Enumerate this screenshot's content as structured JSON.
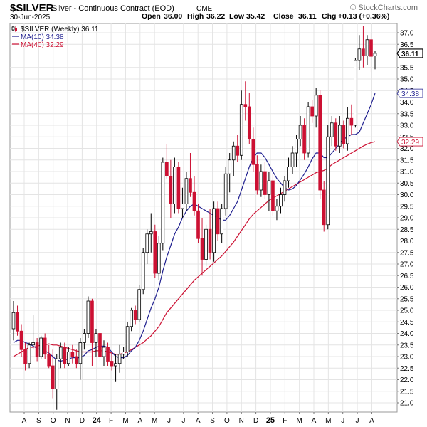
{
  "header": {
    "symbol": "$SILVER",
    "description": "Silver - Continuous Contract (EOD)",
    "exchange": "CME",
    "source_logo": "© StockCharts.com",
    "date": "30-Jun-2025",
    "open_label": "Open",
    "open_value": "36.00",
    "high_label": "High",
    "high_value": "36.22",
    "low_label": "Low",
    "low_value": "35.42",
    "close_label": "Close",
    "close_value": "36.11",
    "chg_label": "Chg",
    "chg_value": "+0.13 (+0.36%)"
  },
  "chart_data": {
    "type": "candlestick",
    "title": "$SILVER Silver - Continuous Contract (EOD) CME",
    "frequency": "Weekly",
    "ylim": [
      20.6,
      37.4
    ],
    "y_ticks": [
      21.0,
      21.5,
      22.0,
      22.5,
      23.0,
      23.5,
      24.0,
      24.5,
      25.0,
      25.5,
      26.0,
      26.5,
      27.0,
      27.5,
      28.0,
      28.5,
      29.0,
      29.5,
      30.0,
      30.5,
      31.0,
      31.5,
      32.0,
      32.5,
      33.0,
      33.5,
      34.0,
      34.5,
      35.0,
      35.5,
      36.0,
      36.5,
      37.0
    ],
    "x_ticks": [
      "A",
      "S",
      "O",
      "N",
      "D",
      "24",
      "F",
      "M",
      "A",
      "M",
      "J",
      "J",
      "A",
      "S",
      "O",
      "N",
      "D",
      "25",
      "F",
      "M",
      "A",
      "M",
      "J",
      "J",
      "A"
    ],
    "grid": true,
    "legend_position": "top-left",
    "legend": [
      {
        "label": "$SILVER (Weekly) 36.11",
        "color": "#000000"
      },
      {
        "label": "MA(10) 34.38",
        "color": "#1f1f8f"
      },
      {
        "label": "MA(40) 32.29",
        "color": "#cc1133"
      }
    ],
    "price_labels": [
      {
        "text": "36.11",
        "value": 36.11,
        "style": "last"
      },
      {
        "text": "34.38",
        "value": 34.38,
        "style": "ma10"
      },
      {
        "text": "32.29",
        "value": 32.29,
        "style": "ma40"
      }
    ],
    "colors": {
      "up": "#ffffff",
      "down": "#cc1133",
      "outline": "#000000",
      "ma10": "#1f1f8f",
      "ma40": "#cc1133"
    },
    "candles": [
      {
        "o": 24.2,
        "h": 25.4,
        "l": 23.7,
        "c": 24.9
      },
      {
        "o": 24.9,
        "h": 25.2,
        "l": 23.9,
        "c": 24.1
      },
      {
        "o": 24.1,
        "h": 24.4,
        "l": 23.0,
        "c": 23.3
      },
      {
        "o": 23.3,
        "h": 23.6,
        "l": 22.4,
        "c": 22.7
      },
      {
        "o": 22.7,
        "h": 23.6,
        "l": 22.5,
        "c": 23.5
      },
      {
        "o": 23.5,
        "h": 24.8,
        "l": 23.3,
        "c": 23.6
      },
      {
        "o": 23.6,
        "h": 23.8,
        "l": 22.8,
        "c": 23.0
      },
      {
        "o": 23.0,
        "h": 23.9,
        "l": 22.9,
        "c": 23.8
      },
      {
        "o": 23.8,
        "h": 24.0,
        "l": 22.9,
        "c": 23.1
      },
      {
        "o": 23.1,
        "h": 23.5,
        "l": 22.5,
        "c": 22.6
      },
      {
        "o": 22.6,
        "h": 23.3,
        "l": 21.2,
        "c": 21.6
      },
      {
        "o": 21.6,
        "h": 23.1,
        "l": 20.7,
        "c": 22.9
      },
      {
        "o": 22.9,
        "h": 23.6,
        "l": 22.5,
        "c": 23.4
      },
      {
        "o": 23.4,
        "h": 23.6,
        "l": 22.5,
        "c": 22.7
      },
      {
        "o": 22.7,
        "h": 23.4,
        "l": 22.6,
        "c": 23.2
      },
      {
        "o": 23.2,
        "h": 23.5,
        "l": 22.7,
        "c": 23.0
      },
      {
        "o": 23.0,
        "h": 23.3,
        "l": 22.5,
        "c": 22.7
      },
      {
        "o": 22.7,
        "h": 23.8,
        "l": 22.0,
        "c": 23.6
      },
      {
        "o": 23.6,
        "h": 24.2,
        "l": 23.3,
        "c": 24.0
      },
      {
        "o": 24.0,
        "h": 25.6,
        "l": 23.8,
        "c": 25.4
      },
      {
        "o": 25.4,
        "h": 25.5,
        "l": 22.6,
        "c": 23.6
      },
      {
        "o": 23.6,
        "h": 24.2,
        "l": 23.0,
        "c": 24.0
      },
      {
        "o": 24.0,
        "h": 24.1,
        "l": 22.8,
        "c": 23.0
      },
      {
        "o": 23.0,
        "h": 23.7,
        "l": 22.6,
        "c": 23.4
      },
      {
        "o": 23.4,
        "h": 23.6,
        "l": 22.6,
        "c": 22.8
      },
      {
        "o": 22.8,
        "h": 23.2,
        "l": 22.4,
        "c": 22.6
      },
      {
        "o": 22.6,
        "h": 23.1,
        "l": 21.9,
        "c": 22.7
      },
      {
        "o": 22.7,
        "h": 23.5,
        "l": 22.3,
        "c": 23.1
      },
      {
        "o": 23.1,
        "h": 23.4,
        "l": 22.9,
        "c": 23.2
      },
      {
        "o": 23.2,
        "h": 24.5,
        "l": 23.0,
        "c": 24.3
      },
      {
        "o": 24.3,
        "h": 25.1,
        "l": 24.1,
        "c": 25.0
      },
      {
        "o": 25.0,
        "h": 25.2,
        "l": 24.4,
        "c": 24.6
      },
      {
        "o": 24.6,
        "h": 26.1,
        "l": 24.5,
        "c": 25.9
      },
      {
        "o": 25.9,
        "h": 27.7,
        "l": 25.7,
        "c": 27.5
      },
      {
        "o": 27.5,
        "h": 28.5,
        "l": 27.0,
        "c": 28.3
      },
      {
        "o": 28.3,
        "h": 29.2,
        "l": 27.5,
        "c": 28.4
      },
      {
        "o": 28.4,
        "h": 28.7,
        "l": 26.4,
        "c": 26.6
      },
      {
        "o": 26.6,
        "h": 28.2,
        "l": 26.3,
        "c": 27.9
      },
      {
        "o": 27.9,
        "h": 31.6,
        "l": 27.6,
        "c": 31.4
      },
      {
        "o": 31.4,
        "h": 32.2,
        "l": 30.7,
        "c": 30.8
      },
      {
        "o": 30.8,
        "h": 31.5,
        "l": 29.0,
        "c": 29.6
      },
      {
        "o": 29.6,
        "h": 31.6,
        "l": 29.2,
        "c": 31.2
      },
      {
        "o": 31.2,
        "h": 31.4,
        "l": 29.2,
        "c": 29.4
      },
      {
        "o": 29.4,
        "h": 30.3,
        "l": 29.0,
        "c": 29.6
      },
      {
        "o": 29.6,
        "h": 31.0,
        "l": 29.3,
        "c": 30.7
      },
      {
        "o": 30.7,
        "h": 31.8,
        "l": 29.9,
        "c": 30.1
      },
      {
        "o": 30.1,
        "h": 30.8,
        "l": 29.1,
        "c": 29.3
      },
      {
        "o": 29.3,
        "h": 29.6,
        "l": 27.9,
        "c": 28.1
      },
      {
        "o": 28.1,
        "h": 29.0,
        "l": 26.5,
        "c": 27.2
      },
      {
        "o": 27.2,
        "h": 28.7,
        "l": 26.9,
        "c": 28.5
      },
      {
        "o": 28.5,
        "h": 29.4,
        "l": 27.2,
        "c": 27.5
      },
      {
        "o": 27.5,
        "h": 29.7,
        "l": 27.1,
        "c": 29.4
      },
      {
        "o": 29.4,
        "h": 29.7,
        "l": 28.0,
        "c": 28.3
      },
      {
        "o": 28.3,
        "h": 29.6,
        "l": 27.9,
        "c": 29.4
      },
      {
        "o": 29.4,
        "h": 31.2,
        "l": 29.1,
        "c": 30.9
      },
      {
        "o": 30.9,
        "h": 31.8,
        "l": 30.1,
        "c": 31.5
      },
      {
        "o": 31.5,
        "h": 32.3,
        "l": 30.8,
        "c": 32.1
      },
      {
        "o": 32.1,
        "h": 32.6,
        "l": 31.4,
        "c": 31.7
      },
      {
        "o": 31.7,
        "h": 34.5,
        "l": 31.5,
        "c": 33.9
      },
      {
        "o": 33.9,
        "h": 34.9,
        "l": 33.2,
        "c": 33.8
      },
      {
        "o": 33.8,
        "h": 34.4,
        "l": 32.2,
        "c": 32.4
      },
      {
        "o": 32.4,
        "h": 32.9,
        "l": 31.0,
        "c": 31.3
      },
      {
        "o": 31.3,
        "h": 31.7,
        "l": 30.0,
        "c": 30.2
      },
      {
        "o": 30.2,
        "h": 31.3,
        "l": 29.9,
        "c": 31.0
      },
      {
        "o": 31.0,
        "h": 31.4,
        "l": 29.8,
        "c": 30.0
      },
      {
        "o": 30.0,
        "h": 31.0,
        "l": 29.3,
        "c": 30.6
      },
      {
        "o": 30.6,
        "h": 30.9,
        "l": 29.1,
        "c": 29.3
      },
      {
        "o": 29.3,
        "h": 29.8,
        "l": 28.9,
        "c": 29.5
      },
      {
        "o": 29.5,
        "h": 30.3,
        "l": 29.2,
        "c": 30.0
      },
      {
        "o": 30.0,
        "h": 30.8,
        "l": 29.7,
        "c": 30.6
      },
      {
        "o": 30.6,
        "h": 31.6,
        "l": 30.3,
        "c": 31.2
      },
      {
        "o": 31.2,
        "h": 32.1,
        "l": 30.9,
        "c": 31.8
      },
      {
        "o": 31.8,
        "h": 32.6,
        "l": 31.2,
        "c": 32.4
      },
      {
        "o": 32.4,
        "h": 33.4,
        "l": 32.1,
        "c": 33.0
      },
      {
        "o": 33.0,
        "h": 33.3,
        "l": 31.5,
        "c": 31.8
      },
      {
        "o": 31.8,
        "h": 34.0,
        "l": 31.6,
        "c": 33.8
      },
      {
        "o": 33.8,
        "h": 34.1,
        "l": 33.1,
        "c": 33.4
      },
      {
        "o": 33.4,
        "h": 34.6,
        "l": 32.9,
        "c": 34.3
      },
      {
        "o": 34.3,
        "h": 34.5,
        "l": 29.8,
        "c": 30.2
      },
      {
        "o": 30.2,
        "h": 30.6,
        "l": 28.4,
        "c": 28.7
      },
      {
        "o": 28.7,
        "h": 33.0,
        "l": 28.5,
        "c": 32.5
      },
      {
        "o": 32.5,
        "h": 33.4,
        "l": 32.1,
        "c": 33.1
      },
      {
        "o": 33.1,
        "h": 33.3,
        "l": 31.9,
        "c": 32.1
      },
      {
        "o": 32.1,
        "h": 33.4,
        "l": 31.8,
        "c": 33.0
      },
      {
        "o": 33.0,
        "h": 33.2,
        "l": 32.0,
        "c": 32.2
      },
      {
        "o": 32.2,
        "h": 33.8,
        "l": 31.9,
        "c": 33.3
      },
      {
        "o": 33.3,
        "h": 33.9,
        "l": 32.6,
        "c": 33.0
      },
      {
        "o": 33.0,
        "h": 35.9,
        "l": 32.9,
        "c": 35.8
      },
      {
        "o": 35.8,
        "h": 36.9,
        "l": 35.4,
        "c": 36.3
      },
      {
        "o": 36.3,
        "h": 37.3,
        "l": 35.5,
        "c": 36.0
      },
      {
        "o": 36.0,
        "h": 36.9,
        "l": 35.6,
        "c": 36.7
      },
      {
        "o": 36.7,
        "h": 37.0,
        "l": 35.3,
        "c": 35.98
      },
      {
        "o": 36.0,
        "h": 36.22,
        "l": 35.42,
        "c": 36.11
      }
    ],
    "ma10": [
      23.6,
      23.7,
      23.7,
      23.6,
      23.55,
      23.45,
      23.35,
      23.3,
      23.25,
      23.15,
      23.0,
      22.85,
      22.8,
      22.85,
      22.9,
      22.95,
      22.95,
      22.95,
      23.05,
      23.25,
      23.3,
      23.4,
      23.45,
      23.45,
      23.4,
      23.2,
      23.0,
      22.95,
      22.95,
      23.05,
      23.25,
      23.4,
      23.7,
      24.1,
      24.6,
      25.1,
      25.5,
      26.0,
      26.7,
      27.3,
      27.8,
      28.3,
      28.6,
      29.0,
      29.3,
      29.5,
      29.6,
      29.5,
      29.4,
      29.3,
      29.2,
      29.1,
      29.0,
      28.9,
      28.9,
      29.1,
      29.4,
      29.7,
      30.2,
      30.7,
      31.2,
      31.6,
      31.8,
      31.8,
      31.6,
      31.3,
      31.0,
      30.7,
      30.5,
      30.3,
      30.2,
      30.25,
      30.4,
      30.65,
      30.9,
      31.2,
      31.55,
      31.8,
      31.8,
      31.6,
      31.6,
      31.8,
      32.0,
      32.2,
      32.4,
      32.5,
      32.6,
      32.6,
      32.7,
      33.1,
      33.5,
      33.9,
      34.38
    ],
    "ma40": [
      23.0,
      23.1,
      23.2,
      23.3,
      23.4,
      23.4,
      23.45,
      23.5,
      23.5,
      23.55,
      23.5,
      23.5,
      23.45,
      23.4,
      23.35,
      23.3,
      23.25,
      23.2,
      23.2,
      23.2,
      23.2,
      23.25,
      23.25,
      23.25,
      23.2,
      23.15,
      23.1,
      23.1,
      23.15,
      23.2,
      23.3,
      23.4,
      23.5,
      23.6,
      23.75,
      23.9,
      24.1,
      24.3,
      24.6,
      24.9,
      25.1,
      25.3,
      25.5,
      25.7,
      25.9,
      26.1,
      26.3,
      26.45,
      26.6,
      26.75,
      26.9,
      27.05,
      27.2,
      27.35,
      27.55,
      27.75,
      27.95,
      28.2,
      28.45,
      28.7,
      28.95,
      29.15,
      29.3,
      29.45,
      29.6,
      29.75,
      29.85,
      29.95,
      30.05,
      30.15,
      30.25,
      30.35,
      30.45,
      30.55,
      30.65,
      30.75,
      30.85,
      30.95,
      31.0,
      31.05,
      31.15,
      31.3,
      31.4,
      31.5,
      31.6,
      31.7,
      31.8,
      31.9,
      32.0,
      32.1,
      32.18,
      32.25,
      32.29
    ]
  }
}
